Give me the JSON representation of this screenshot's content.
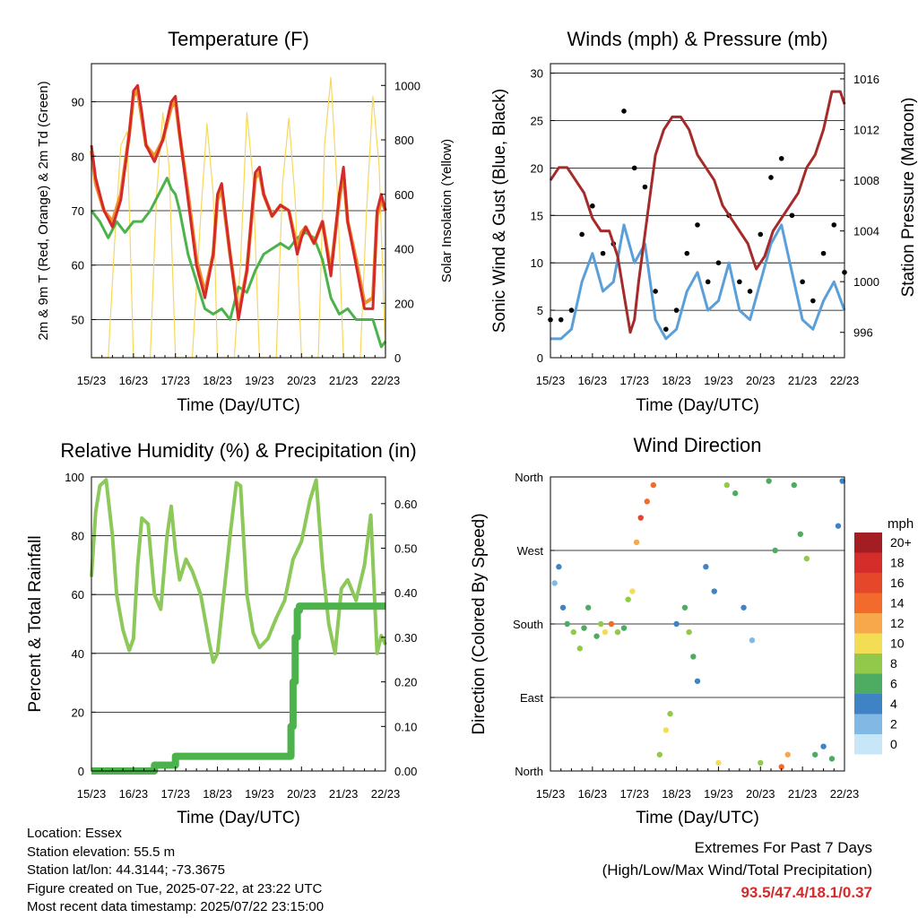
{
  "panels": {
    "temperature": {
      "title": "Temperature (F)",
      "ylabel_left": "2m & 9m T (Red, Orange) & 2m Td (Green)",
      "ylabel_right": "Solar Insolation (Yellow)",
      "xlabel": "Time (Day/UTC)"
    },
    "winds": {
      "title": "Winds (mph) & Pressure (mb)",
      "ylabel_left": "Sonic Wind & Gust (Blue, Black)",
      "ylabel_right": "Station Pressure (Maroon)",
      "xlabel": "Time (Day/UTC)"
    },
    "humidity": {
      "title": "Relative Humidity (%) & Precipitation (in)",
      "ylabel_left": "Percent & Total Rainfall",
      "xlabel": "Time (Day/UTC)"
    },
    "direction": {
      "title": "Wind Direction",
      "ylabel_left": "Direction (Colored By Speed)",
      "xlabel": "Time (Day/UTC)",
      "legend_unit": "mph"
    }
  },
  "info": {
    "location": "Location: Essex",
    "elevation": "Station elevation: 55.5 m",
    "latlon": "Station lat/lon: 44.3144; -73.3675",
    "created": "Figure created on Tue, 2025-07-22, at 23:22 UTC",
    "timestamp": "Most recent data timestamp: 2025/07/22 23:15:00"
  },
  "extremes": {
    "line1": "Extremes For Past 7 Days",
    "line2": "(High/Low/Max Wind/Total Precipitation)",
    "values": "93.5/47.4/18.1/0.37"
  },
  "colors": {
    "temp2m": "#d42a2a",
    "temp9m": "#f0902a",
    "dewpoint": "#4cb24c",
    "solar": "#f8d85a",
    "wind": "#5a9fd8",
    "gust": "#000000",
    "pressure": "#a52a2a",
    "rh": "#8dc85a",
    "precip": "#4cb24c"
  },
  "chart_data": [
    {
      "type": "line",
      "title": "Temperature (F)",
      "xlabel": "Time (Day/UTC)",
      "ylabel": "2m & 9m T (Red, Orange) & 2m Td (Green)",
      "y2label": "Solar Insolation (Yellow)",
      "xlim": [
        0,
        7
      ],
      "ylim": [
        43,
        97
      ],
      "y2lim": [
        0,
        1080
      ],
      "x_ticks": [
        "15/23",
        "16/23",
        "17/23",
        "18/23",
        "19/23",
        "20/23",
        "21/23",
        "22/23"
      ],
      "y_ticks": [
        50,
        60,
        70,
        80,
        90
      ],
      "y2_ticks": [
        0,
        200,
        400,
        600,
        800,
        1000
      ],
      "series": [
        {
          "name": "2m T",
          "axis": "left",
          "x": [
            0,
            0.1,
            0.3,
            0.5,
            0.7,
            0.9,
            1.0,
            1.1,
            1.2,
            1.3,
            1.5,
            1.7,
            1.9,
            2.0,
            2.1,
            2.3,
            2.5,
            2.7,
            2.9,
            3.0,
            3.1,
            3.3,
            3.5,
            3.7,
            3.9,
            4.0,
            4.1,
            4.3,
            4.5,
            4.7,
            4.9,
            5.0,
            5.1,
            5.3,
            5.5,
            5.7,
            5.9,
            6.0,
            6.1,
            6.3,
            6.5,
            6.7,
            6.8,
            6.9,
            7.0
          ],
          "y": [
            82,
            76,
            70,
            67,
            72,
            84,
            92,
            93,
            88,
            82,
            79,
            83,
            90,
            91,
            84,
            72,
            60,
            54,
            62,
            73,
            75,
            62,
            50,
            59,
            77,
            78,
            73,
            69,
            71,
            70,
            62,
            65,
            67,
            64,
            68,
            58,
            73,
            78,
            68,
            60,
            52,
            52,
            70,
            73,
            70
          ]
        },
        {
          "name": "9m T",
          "axis": "left",
          "x": [
            0,
            0.1,
            0.3,
            0.5,
            0.7,
            0.9,
            1.0,
            1.1,
            1.2,
            1.3,
            1.5,
            1.7,
            1.9,
            2.0,
            2.1,
            2.3,
            2.5,
            2.7,
            2.9,
            3.0,
            3.1,
            3.3,
            3.5,
            3.7,
            3.9,
            4.0,
            4.1,
            4.3,
            4.5,
            4.7,
            4.9,
            5.0,
            5.1,
            5.3,
            5.5,
            5.7,
            5.9,
            6.0,
            6.1,
            6.3,
            6.5,
            6.7,
            6.8,
            6.9,
            7.0
          ],
          "y": [
            81,
            75,
            70,
            68,
            73,
            84,
            91,
            92,
            87,
            82,
            80,
            83,
            89,
            90,
            84,
            73,
            61,
            55,
            62,
            72,
            74,
            62,
            51,
            59,
            76,
            77,
            73,
            69,
            71,
            70,
            63,
            66,
            67,
            64,
            68,
            59,
            72,
            77,
            68,
            61,
            53,
            54,
            69,
            72,
            70
          ]
        },
        {
          "name": "2m Td",
          "axis": "left",
          "x": [
            0,
            0.2,
            0.4,
            0.6,
            0.8,
            1.0,
            1.2,
            1.4,
            1.6,
            1.8,
            1.9,
            2.0,
            2.1,
            2.3,
            2.5,
            2.7,
            2.9,
            3.1,
            3.3,
            3.5,
            3.7,
            3.9,
            4.1,
            4.3,
            4.5,
            4.7,
            4.9,
            5.1,
            5.3,
            5.5,
            5.7,
            5.9,
            6.1,
            6.3,
            6.5,
            6.7,
            6.9,
            7.0
          ],
          "y": [
            70,
            68,
            65,
            68,
            66,
            68,
            68,
            70,
            73,
            76,
            74,
            73,
            70,
            62,
            57,
            52,
            51,
            52,
            50,
            56,
            55,
            59,
            62,
            63,
            64,
            63,
            65,
            66,
            65,
            61,
            54,
            51,
            52,
            50,
            50,
            50,
            45,
            46
          ]
        },
        {
          "name": "Solar Insolation",
          "axis": "right",
          "x": [
            0,
            0.2,
            0.4,
            0.55,
            0.7,
            0.85,
            1.0,
            1.2,
            1.4,
            1.55,
            1.7,
            1.85,
            2.0,
            2.2,
            2.4,
            2.6,
            2.75,
            2.9,
            3.0,
            3.2,
            3.4,
            3.55,
            3.7,
            3.85,
            4.0,
            4.2,
            4.4,
            4.55,
            4.7,
            4.85,
            5.0,
            5.2,
            5.4,
            5.55,
            5.7,
            5.85,
            6.0,
            6.2,
            6.4,
            6.55,
            6.7,
            6.85,
            7.0
          ],
          "y": [
            0,
            0,
            0,
            420,
            780,
            830,
            0,
            0,
            0,
            600,
            900,
            700,
            0,
            0,
            0,
            520,
            860,
            600,
            0,
            0,
            0,
            350,
            900,
            650,
            0,
            0,
            0,
            640,
            880,
            580,
            0,
            0,
            0,
            780,
            1030,
            620,
            0,
            0,
            0,
            540,
            960,
            700,
            0
          ]
        }
      ]
    },
    {
      "type": "line",
      "title": "Winds (mph) & Pressure (mb)",
      "xlabel": "Time (Day/UTC)",
      "ylabel": "Sonic Wind & Gust (Blue, Black)",
      "y2label": "Station Pressure (Maroon)",
      "xlim": [
        0,
        7
      ],
      "ylim": [
        0,
        31
      ],
      "y2lim": [
        994,
        1017.2
      ],
      "x_ticks": [
        "15/23",
        "16/23",
        "17/23",
        "18/23",
        "19/23",
        "20/23",
        "21/23",
        "22/23"
      ],
      "y_ticks": [
        0,
        5,
        10,
        15,
        20,
        25,
        30
      ],
      "y2_ticks": [
        996,
        1000,
        1004,
        1008,
        1012,
        1016
      ],
      "series": [
        {
          "name": "Sonic Wind",
          "axis": "left",
          "x": [
            0,
            0.25,
            0.5,
            0.75,
            1.0,
            1.25,
            1.5,
            1.75,
            2.0,
            2.25,
            2.5,
            2.75,
            3.0,
            3.25,
            3.5,
            3.75,
            4.0,
            4.25,
            4.5,
            4.75,
            5.0,
            5.25,
            5.5,
            5.75,
            6.0,
            6.25,
            6.5,
            6.75,
            7.0
          ],
          "y": [
            2,
            2,
            3,
            8,
            11,
            7,
            8,
            14,
            10,
            12,
            4,
            2,
            3,
            7,
            9,
            5,
            6,
            10,
            5,
            4,
            8,
            12,
            14,
            9,
            4,
            3,
            6,
            8,
            5
          ]
        },
        {
          "name": "Gust",
          "axis": "left",
          "x": [
            0,
            0.25,
            0.5,
            0.75,
            1.0,
            1.25,
            1.5,
            1.75,
            2.0,
            2.25,
            2.5,
            2.75,
            3.0,
            3.25,
            3.5,
            3.75,
            4.0,
            4.25,
            4.5,
            4.75,
            5.0,
            5.25,
            5.5,
            5.75,
            6.0,
            6.25,
            6.5,
            6.75,
            7.0
          ],
          "y": [
            4,
            4,
            5,
            13,
            16,
            11,
            12,
            26,
            20,
            18,
            7,
            3,
            5,
            11,
            14,
            8,
            10,
            15,
            8,
            7,
            13,
            19,
            21,
            15,
            8,
            6,
            11,
            14,
            9
          ]
        },
        {
          "name": "Station Pressure",
          "axis": "right",
          "x": [
            0,
            0.2,
            0.4,
            0.6,
            0.8,
            1.0,
            1.2,
            1.4,
            1.6,
            1.8,
            1.9,
            2.0,
            2.1,
            2.3,
            2.5,
            2.7,
            2.9,
            3.1,
            3.3,
            3.5,
            3.7,
            3.9,
            4.1,
            4.3,
            4.5,
            4.7,
            4.9,
            5.1,
            5.3,
            5.5,
            5.7,
            5.9,
            6.1,
            6.3,
            6.5,
            6.7,
            6.9,
            7.0
          ],
          "y": [
            1008,
            1009,
            1009,
            1008,
            1007,
            1005,
            1004,
            1004,
            1002,
            998,
            996,
            997,
            1000,
            1005,
            1010,
            1012,
            1013,
            1013,
            1012,
            1010,
            1009,
            1008,
            1006,
            1005,
            1004,
            1003,
            1001,
            1002,
            1004,
            1005,
            1006,
            1007,
            1009,
            1010,
            1012,
            1015,
            1015,
            1014
          ]
        }
      ]
    },
    {
      "type": "line",
      "title": "Relative Humidity (%) & Precipitation (in)",
      "xlabel": "Time (Day/UTC)",
      "ylabel": "Percent & Total Rainfall",
      "xlim": [
        0,
        7
      ],
      "ylim": [
        0,
        100
      ],
      "y2lim": [
        0,
        0.66
      ],
      "x_ticks": [
        "15/23",
        "16/23",
        "17/23",
        "18/23",
        "19/23",
        "20/23",
        "21/23",
        "22/23"
      ],
      "y_ticks": [
        0,
        20,
        40,
        60,
        80,
        100
      ],
      "y2_ticks": [
        0.0,
        0.1,
        0.2,
        0.3,
        0.4,
        0.5,
        0.6
      ],
      "series": [
        {
          "name": "Relative Humidity",
          "axis": "left",
          "x": [
            0,
            0.1,
            0.2,
            0.35,
            0.5,
            0.6,
            0.75,
            0.9,
            1.0,
            1.1,
            1.2,
            1.35,
            1.5,
            1.65,
            1.8,
            1.9,
            2.0,
            2.1,
            2.25,
            2.4,
            2.6,
            2.8,
            2.9,
            3.0,
            3.15,
            3.3,
            3.45,
            3.55,
            3.7,
            3.85,
            4.0,
            4.2,
            4.4,
            4.6,
            4.8,
            5.0,
            5.2,
            5.35,
            5.5,
            5.65,
            5.8,
            5.95,
            6.1,
            6.3,
            6.5,
            6.65,
            6.8,
            6.9,
            7.0
          ],
          "y": [
            66,
            88,
            97,
            99,
            80,
            60,
            48,
            41,
            45,
            70,
            86,
            84,
            60,
            55,
            80,
            90,
            75,
            65,
            72,
            68,
            60,
            44,
            37,
            40,
            60,
            80,
            98,
            97,
            60,
            47,
            42,
            45,
            52,
            58,
            72,
            78,
            92,
            99,
            70,
            50,
            40,
            62,
            65,
            58,
            70,
            87,
            40,
            46,
            43
          ]
        },
        {
          "name": "Precipitation",
          "axis": "right",
          "x": [
            0,
            1.4,
            1.5,
            1.9,
            2.0,
            4.7,
            4.75,
            4.8,
            4.85,
            4.9,
            4.95,
            7.0
          ],
          "y": [
            0.0,
            0.0,
            0.013,
            0.013,
            0.033,
            0.033,
            0.1,
            0.2,
            0.3,
            0.36,
            0.37,
            0.37
          ]
        }
      ]
    },
    {
      "type": "scatter",
      "title": "Wind Direction",
      "xlabel": "Time (Day/UTC)",
      "ylabel": "Direction (Colored By Speed)",
      "xlim": [
        0,
        7
      ],
      "ylim": [
        0,
        360
      ],
      "x_ticks": [
        "15/23",
        "16/23",
        "17/23",
        "18/23",
        "19/23",
        "20/23",
        "21/23",
        "22/23"
      ],
      "y_ticks": [
        "North",
        "East",
        "South",
        "West",
        "North"
      ],
      "legend": {
        "title": "mph",
        "labels": [
          "20+",
          "18",
          "16",
          "14",
          "12",
          "10",
          "8",
          "6",
          "4",
          "2",
          "0"
        ],
        "colors": [
          "#a31d22",
          "#d42d2a",
          "#e5472a",
          "#f26b2d",
          "#f7a84a",
          "#f3dd55",
          "#93c94a",
          "#4dab62",
          "#3f83c4",
          "#82b9e4",
          "#c7e6f8"
        ]
      },
      "series": [
        {
          "name": "Wind Direction",
          "x": [
            0.1,
            0.2,
            0.3,
            0.4,
            0.55,
            0.7,
            0.8,
            0.9,
            1.1,
            1.2,
            1.3,
            1.45,
            1.6,
            1.75,
            1.85,
            1.95,
            2.05,
            2.15,
            2.3,
            2.45,
            2.6,
            2.75,
            2.85,
            3.0,
            3.2,
            3.3,
            3.4,
            3.5,
            3.7,
            3.9,
            4.0,
            4.2,
            4.4,
            4.6,
            4.8,
            5.0,
            5.2,
            5.35,
            5.5,
            5.65,
            5.8,
            5.95,
            6.1,
            6.3,
            6.5,
            6.7,
            6.85,
            6.95
          ],
          "dir": [
            230,
            250,
            200,
            180,
            170,
            150,
            175,
            200,
            165,
            180,
            170,
            180,
            170,
            175,
            210,
            220,
            280,
            310,
            330,
            350,
            20,
            50,
            70,
            180,
            200,
            170,
            140,
            110,
            250,
            220,
            10,
            350,
            340,
            200,
            160,
            10,
            355,
            270,
            5,
            20,
            350,
            290,
            260,
            20,
            30,
            15,
            300,
            355
          ],
          "speed": [
            2,
            3,
            3,
            5,
            8,
            8,
            6,
            5,
            6,
            7,
            9,
            14,
            8,
            6,
            7,
            9,
            12,
            16,
            14,
            13,
            8,
            9,
            7,
            3,
            5,
            8,
            6,
            4,
            3,
            3,
            9,
            7,
            5,
            3,
            2,
            8,
            6,
            5,
            14,
            12,
            6,
            5,
            7,
            6,
            4,
            5,
            3,
            4
          ]
        }
      ]
    }
  ]
}
